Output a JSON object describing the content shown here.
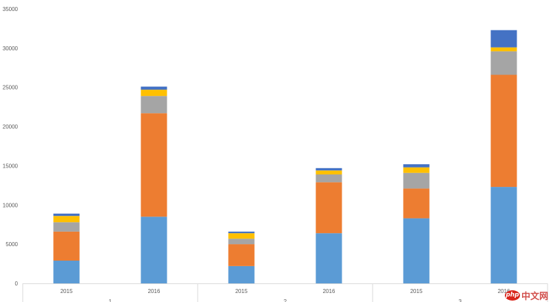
{
  "chart_data": {
    "type": "bar",
    "stacked": true,
    "title": "",
    "xlabel": "",
    "ylabel": "",
    "ylim": [
      0,
      35000
    ],
    "yticks": [
      0,
      5000,
      10000,
      15000,
      20000,
      25000,
      30000,
      35000
    ],
    "grid": false,
    "legend": "none",
    "groups": [
      "1",
      "2",
      "3"
    ],
    "categories": [
      "2015",
      "2016",
      "2015",
      "2016",
      "2015",
      "2016"
    ],
    "category_group": [
      0,
      0,
      1,
      1,
      2,
      2
    ],
    "colors": [
      "#5b9bd5",
      "#ed7d31",
      "#a5a5a5",
      "#ffc000",
      "#4472c4"
    ],
    "series": [
      {
        "values": [
          2900,
          8500,
          2200,
          6400,
          8300,
          12300
        ]
      },
      {
        "values": [
          3700,
          13200,
          2800,
          6500,
          3800,
          14300
        ]
      },
      {
        "values": [
          1200,
          2200,
          700,
          1000,
          2000,
          3000
        ]
      },
      {
        "values": [
          800,
          800,
          700,
          500,
          700,
          500
        ]
      },
      {
        "values": [
          300,
          400,
          200,
          300,
          400,
          2200
        ]
      }
    ]
  },
  "watermark": {
    "badge": "php",
    "text": "中文网"
  }
}
